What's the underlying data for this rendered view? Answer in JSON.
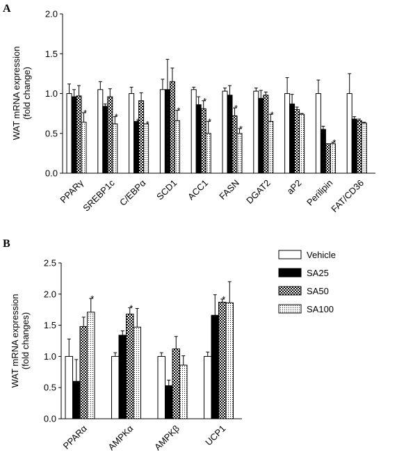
{
  "chart_data": [
    {
      "panel": "A",
      "type": "bar",
      "ylabel": "WAT mRNA expression\n(fold change)",
      "ylim": [
        0,
        2.0
      ],
      "yticks": [
        "0.0",
        "0.5",
        "1.0",
        "1.5",
        "2.0"
      ],
      "categories": [
        "PPARγ",
        "SREBP1c",
        "C/EBPα",
        "SCD1",
        "ACC1",
        "FASN",
        "DGAT2",
        "aP2",
        "Perilipin",
        "FAT/CD36"
      ],
      "series": [
        {
          "name": "Vehicle",
          "values": [
            1.0,
            1.05,
            1.0,
            1.05,
            1.05,
            1.03,
            1.03,
            1.0,
            1.0,
            1.0
          ],
          "errors": [
            0.12,
            0.1,
            0.08,
            0.13,
            0.03,
            0.04,
            0.04,
            0.2,
            0.17,
            0.25
          ],
          "sig": [
            false,
            false,
            false,
            false,
            false,
            false,
            false,
            false,
            false,
            false
          ]
        },
        {
          "name": "SA25",
          "values": [
            0.96,
            0.84,
            0.65,
            1.05,
            0.86,
            0.98,
            0.94,
            0.87,
            0.55,
            0.68
          ],
          "errors": [
            0.09,
            0.03,
            0.0,
            0.38,
            0.1,
            0.12,
            0.1,
            0.12,
            0.04,
            0.03
          ],
          "sig": [
            false,
            false,
            true,
            false,
            false,
            false,
            false,
            false,
            false,
            false
          ]
        },
        {
          "name": "SA50",
          "values": [
            0.97,
            0.96,
            0.91,
            1.15,
            0.81,
            0.72,
            0.98,
            0.8,
            0.37,
            0.66
          ],
          "errors": [
            0.13,
            0.1,
            0.1,
            0.17,
            0.1,
            0.1,
            0.04,
            0.03,
            0.0,
            0.02
          ],
          "sig": [
            false,
            false,
            false,
            false,
            true,
            true,
            false,
            false,
            false,
            false
          ]
        },
        {
          "name": "SA100",
          "values": [
            0.64,
            0.62,
            0.62,
            0.66,
            0.5,
            0.5,
            0.65,
            0.74,
            0.37,
            0.63
          ],
          "errors": [
            0.12,
            0.09,
            0.0,
            0.13,
            0.15,
            0.06,
            0.09,
            0.01,
            0.02,
            0.01
          ],
          "sig": [
            true,
            true,
            true,
            true,
            true,
            true,
            true,
            false,
            true,
            false
          ]
        }
      ]
    },
    {
      "panel": "B",
      "type": "bar",
      "ylabel": "WAT mRNA expression\n(fold changes)",
      "ylim": [
        0,
        2.5
      ],
      "yticks": [
        "0.0",
        "0.5",
        "1.0",
        "1.5",
        "2.0",
        "2.5"
      ],
      "categories": [
        "PPARα",
        "AMPKα",
        "AMPKβ",
        "UCP1"
      ],
      "series": [
        {
          "name": "Vehicle",
          "values": [
            1.0,
            1.0,
            1.0,
            1.0
          ],
          "errors": [
            0.28,
            0.06,
            0.06,
            0.07
          ],
          "sig": [
            false,
            false,
            false,
            false
          ]
        },
        {
          "name": "SA25",
          "values": [
            0.6,
            1.34,
            0.53,
            1.66
          ],
          "errors": [
            0.35,
            0.07,
            0.09,
            0.33
          ],
          "sig": [
            false,
            false,
            false,
            false
          ]
        },
        {
          "name": "SA50",
          "values": [
            1.48,
            1.68,
            1.12,
            1.87
          ],
          "errors": [
            0.15,
            0.1,
            0.2,
            0.05
          ],
          "sig": [
            false,
            true,
            false,
            true
          ]
        },
        {
          "name": "SA100",
          "values": [
            1.71,
            1.47,
            0.86,
            1.86
          ],
          "errors": [
            0.22,
            0.3,
            0.15,
            0.34
          ],
          "sig": [
            true,
            false,
            false,
            false
          ]
        }
      ]
    }
  ],
  "legend": {
    "placement": "right of panel B",
    "items": [
      "Vehicle",
      "SA25",
      "SA50",
      "SA100"
    ]
  },
  "panel_labels": [
    "A",
    "B"
  ],
  "significance_marker": "*"
}
